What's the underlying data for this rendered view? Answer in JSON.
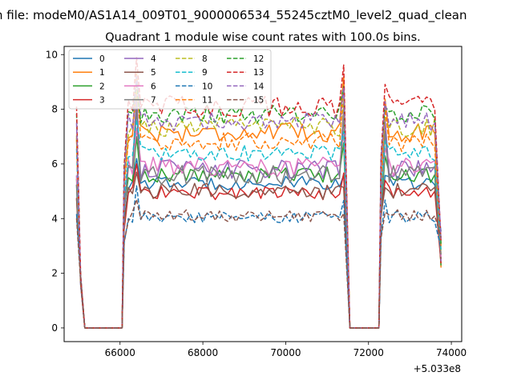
{
  "figure": {
    "suptitle": "n file: modeM0/AS1A14_009T01_9000006534_55245cztM0_level2_quad_clean"
  },
  "chart_data": {
    "type": "line",
    "title": "Quadrant 1 module wise count rates with 100.0s bins.",
    "xlabel": "",
    "ylabel": "",
    "xlim": [
      64650,
      74250
    ],
    "ylim": [
      -0.5,
      10.3
    ],
    "x_offset_label": "+5.033e8",
    "x_ticks": [
      66000,
      68000,
      70000,
      72000,
      74000
    ],
    "x_tick_labels": [
      "66000",
      "68000",
      "70000",
      "72000",
      "74000"
    ],
    "y_ticks": [
      0,
      2,
      4,
      6,
      8,
      10
    ],
    "y_tick_labels": [
      "0",
      "2",
      "4",
      "6",
      "8",
      "10"
    ],
    "grid": false,
    "legend_location": "upper-left",
    "legend_columns": 4,
    "segments": {
      "gti1": [
        66050,
        71450
      ],
      "gti2": [
        72250,
        73750
      ],
      "off1": [
        65150,
        66050
      ],
      "off2": [
        71550,
        72250
      ]
    },
    "series": [
      {
        "name": "0",
        "color": "#1f77b4",
        "dashed": false,
        "level": 5.3,
        "peak": 6.2,
        "amp": 0.25
      },
      {
        "name": "1",
        "color": "#ff7f0e",
        "dashed": false,
        "level": 7.15,
        "peak": 9.3,
        "amp": 0.35
      },
      {
        "name": "2",
        "color": "#2ca02c",
        "dashed": false,
        "level": 5.6,
        "peak": 7.0,
        "amp": 0.3
      },
      {
        "name": "3",
        "color": "#d62728",
        "dashed": false,
        "level": 4.95,
        "peak": 6.0,
        "amp": 0.28
      },
      {
        "name": "4",
        "color": "#9467bd",
        "dashed": false,
        "level": 5.8,
        "peak": 8.5,
        "amp": 0.35
      },
      {
        "name": "5",
        "color": "#8c564b",
        "dashed": false,
        "level": 5.0,
        "peak": 5.7,
        "amp": 0.3
      },
      {
        "name": "6",
        "color": "#e377c2",
        "dashed": false,
        "level": 5.9,
        "peak": 7.3,
        "amp": 0.35
      },
      {
        "name": "7",
        "color": "#7f7f7f",
        "dashed": false,
        "level": 5.6,
        "peak": 8.0,
        "amp": 0.35
      },
      {
        "name": "8",
        "color": "#bcbd22",
        "dashed": true,
        "level": 7.35,
        "peak": 8.6,
        "amp": 0.35
      },
      {
        "name": "9",
        "color": "#17becf",
        "dashed": true,
        "level": 6.4,
        "peak": 7.6,
        "amp": 0.3
      },
      {
        "name": "10",
        "color": "#1f77b4",
        "dashed": true,
        "level": 4.05,
        "peak": 5.2,
        "amp": 0.22
      },
      {
        "name": "11",
        "color": "#ff7f0e",
        "dashed": true,
        "level": 6.8,
        "peak": 9.0,
        "amp": 0.35
      },
      {
        "name": "12",
        "color": "#2ca02c",
        "dashed": true,
        "level": 7.8,
        "peak": 9.0,
        "amp": 0.35
      },
      {
        "name": "13",
        "color": "#d62728",
        "dashed": true,
        "level": 8.1,
        "peak": 9.9,
        "amp": 0.4
      },
      {
        "name": "14",
        "color": "#9467bd",
        "dashed": true,
        "level": 7.55,
        "peak": 9.2,
        "amp": 0.35
      },
      {
        "name": "15",
        "color": "#8c564b",
        "dashed": true,
        "level": 4.1,
        "peak": 4.7,
        "amp": 0.22
      }
    ]
  }
}
